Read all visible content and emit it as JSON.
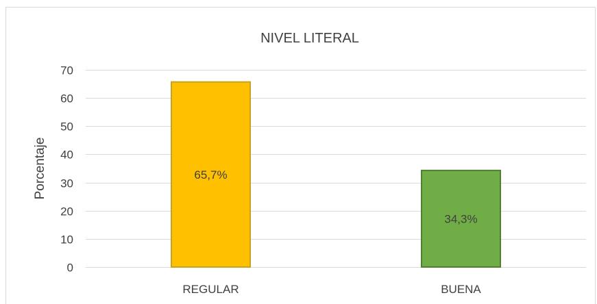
{
  "chart_data": {
    "type": "bar",
    "title": "NIVEL LITERAL",
    "xlabel": "",
    "ylabel": "Porcentaje",
    "categories": [
      "REGULAR",
      "BUENA"
    ],
    "values": [
      65.7,
      34.3
    ],
    "data_labels": [
      "65,7%",
      "34,3%"
    ],
    "yticks": [
      "0",
      "10",
      "20",
      "30",
      "40",
      "50",
      "60",
      "70"
    ],
    "ylim": [
      0,
      70
    ],
    "grid": true,
    "legend": "none",
    "colors": {
      "bars": [
        "#FFC000",
        "#70AD47"
      ],
      "bar_borders": [
        "#C9A224",
        "#507E32"
      ],
      "grid": "#D9D9D9",
      "text": "#404040",
      "frame": "#D9D9D9"
    }
  }
}
